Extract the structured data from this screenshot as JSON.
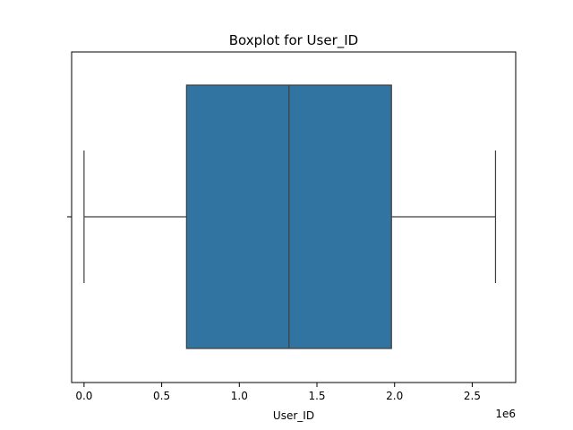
{
  "chart_data": {
    "type": "boxplot",
    "title": "Boxplot for User_ID",
    "xlabel": "User_ID",
    "ylabel": "",
    "x_offset_label": "1e6",
    "xlim": [
      -0.08,
      2.78
    ],
    "x_ticks": [
      0.0,
      0.5,
      1.0,
      1.5,
      2.0,
      2.5
    ],
    "x_tick_labels": [
      "0.0",
      "0.5",
      "1.0",
      "1.5",
      "2.0",
      "2.5"
    ],
    "box": {
      "whisker_low": 0.0,
      "q1": 0.66,
      "median": 1.32,
      "q3": 1.98,
      "whisker_high": 2.65
    },
    "grid": false,
    "legend": "none",
    "colors": {
      "box_fill": "#3274a1",
      "lines": "#3f3f3f"
    }
  }
}
